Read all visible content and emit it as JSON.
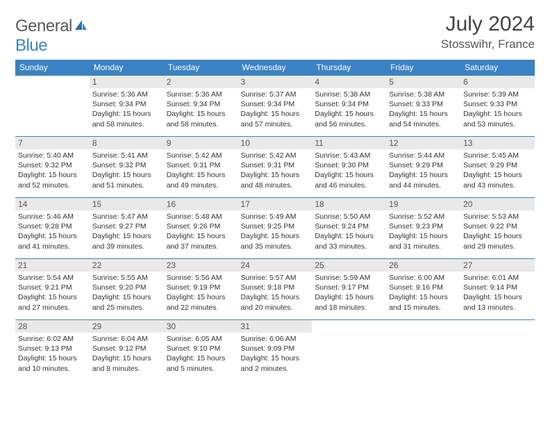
{
  "logo": {
    "general": "General",
    "blue": "Blue"
  },
  "title": "July 2024",
  "location": "Stosswihr, France",
  "colors": {
    "header_bg": "#3b82c4",
    "header_text": "#ffffff",
    "daynum_bg": "#e9e9e9",
    "border": "#3b82c4",
    "logo_grey": "#5a5a5a",
    "logo_blue": "#3b82c4"
  },
  "weekdays": [
    "Sunday",
    "Monday",
    "Tuesday",
    "Wednesday",
    "Thursday",
    "Friday",
    "Saturday"
  ],
  "weeks": [
    [
      null,
      {
        "day": "1",
        "sunrise": "Sunrise: 5:36 AM",
        "sunset": "Sunset: 9:34 PM",
        "dl1": "Daylight: 15 hours",
        "dl2": "and 58 minutes."
      },
      {
        "day": "2",
        "sunrise": "Sunrise: 5:36 AM",
        "sunset": "Sunset: 9:34 PM",
        "dl1": "Daylight: 15 hours",
        "dl2": "and 58 minutes."
      },
      {
        "day": "3",
        "sunrise": "Sunrise: 5:37 AM",
        "sunset": "Sunset: 9:34 PM",
        "dl1": "Daylight: 15 hours",
        "dl2": "and 57 minutes."
      },
      {
        "day": "4",
        "sunrise": "Sunrise: 5:38 AM",
        "sunset": "Sunset: 9:34 PM",
        "dl1": "Daylight: 15 hours",
        "dl2": "and 56 minutes."
      },
      {
        "day": "5",
        "sunrise": "Sunrise: 5:38 AM",
        "sunset": "Sunset: 9:33 PM",
        "dl1": "Daylight: 15 hours",
        "dl2": "and 54 minutes."
      },
      {
        "day": "6",
        "sunrise": "Sunrise: 5:39 AM",
        "sunset": "Sunset: 9:33 PM",
        "dl1": "Daylight: 15 hours",
        "dl2": "and 53 minutes."
      }
    ],
    [
      {
        "day": "7",
        "sunrise": "Sunrise: 5:40 AM",
        "sunset": "Sunset: 9:32 PM",
        "dl1": "Daylight: 15 hours",
        "dl2": "and 52 minutes."
      },
      {
        "day": "8",
        "sunrise": "Sunrise: 5:41 AM",
        "sunset": "Sunset: 9:32 PM",
        "dl1": "Daylight: 15 hours",
        "dl2": "and 51 minutes."
      },
      {
        "day": "9",
        "sunrise": "Sunrise: 5:42 AM",
        "sunset": "Sunset: 9:31 PM",
        "dl1": "Daylight: 15 hours",
        "dl2": "and 49 minutes."
      },
      {
        "day": "10",
        "sunrise": "Sunrise: 5:42 AM",
        "sunset": "Sunset: 9:31 PM",
        "dl1": "Daylight: 15 hours",
        "dl2": "and 48 minutes."
      },
      {
        "day": "11",
        "sunrise": "Sunrise: 5:43 AM",
        "sunset": "Sunset: 9:30 PM",
        "dl1": "Daylight: 15 hours",
        "dl2": "and 46 minutes."
      },
      {
        "day": "12",
        "sunrise": "Sunrise: 5:44 AM",
        "sunset": "Sunset: 9:29 PM",
        "dl1": "Daylight: 15 hours",
        "dl2": "and 44 minutes."
      },
      {
        "day": "13",
        "sunrise": "Sunrise: 5:45 AM",
        "sunset": "Sunset: 9:29 PM",
        "dl1": "Daylight: 15 hours",
        "dl2": "and 43 minutes."
      }
    ],
    [
      {
        "day": "14",
        "sunrise": "Sunrise: 5:46 AM",
        "sunset": "Sunset: 9:28 PM",
        "dl1": "Daylight: 15 hours",
        "dl2": "and 41 minutes."
      },
      {
        "day": "15",
        "sunrise": "Sunrise: 5:47 AM",
        "sunset": "Sunset: 9:27 PM",
        "dl1": "Daylight: 15 hours",
        "dl2": "and 39 minutes."
      },
      {
        "day": "16",
        "sunrise": "Sunrise: 5:48 AM",
        "sunset": "Sunset: 9:26 PM",
        "dl1": "Daylight: 15 hours",
        "dl2": "and 37 minutes."
      },
      {
        "day": "17",
        "sunrise": "Sunrise: 5:49 AM",
        "sunset": "Sunset: 9:25 PM",
        "dl1": "Daylight: 15 hours",
        "dl2": "and 35 minutes."
      },
      {
        "day": "18",
        "sunrise": "Sunrise: 5:50 AM",
        "sunset": "Sunset: 9:24 PM",
        "dl1": "Daylight: 15 hours",
        "dl2": "and 33 minutes."
      },
      {
        "day": "19",
        "sunrise": "Sunrise: 5:52 AM",
        "sunset": "Sunset: 9:23 PM",
        "dl1": "Daylight: 15 hours",
        "dl2": "and 31 minutes."
      },
      {
        "day": "20",
        "sunrise": "Sunrise: 5:53 AM",
        "sunset": "Sunset: 9:22 PM",
        "dl1": "Daylight: 15 hours",
        "dl2": "and 29 minutes."
      }
    ],
    [
      {
        "day": "21",
        "sunrise": "Sunrise: 5:54 AM",
        "sunset": "Sunset: 9:21 PM",
        "dl1": "Daylight: 15 hours",
        "dl2": "and 27 minutes."
      },
      {
        "day": "22",
        "sunrise": "Sunrise: 5:55 AM",
        "sunset": "Sunset: 9:20 PM",
        "dl1": "Daylight: 15 hours",
        "dl2": "and 25 minutes."
      },
      {
        "day": "23",
        "sunrise": "Sunrise: 5:56 AM",
        "sunset": "Sunset: 9:19 PM",
        "dl1": "Daylight: 15 hours",
        "dl2": "and 22 minutes."
      },
      {
        "day": "24",
        "sunrise": "Sunrise: 5:57 AM",
        "sunset": "Sunset: 9:18 PM",
        "dl1": "Daylight: 15 hours",
        "dl2": "and 20 minutes."
      },
      {
        "day": "25",
        "sunrise": "Sunrise: 5:59 AM",
        "sunset": "Sunset: 9:17 PM",
        "dl1": "Daylight: 15 hours",
        "dl2": "and 18 minutes."
      },
      {
        "day": "26",
        "sunrise": "Sunrise: 6:00 AM",
        "sunset": "Sunset: 9:16 PM",
        "dl1": "Daylight: 15 hours",
        "dl2": "and 15 minutes."
      },
      {
        "day": "27",
        "sunrise": "Sunrise: 6:01 AM",
        "sunset": "Sunset: 9:14 PM",
        "dl1": "Daylight: 15 hours",
        "dl2": "and 13 minutes."
      }
    ],
    [
      {
        "day": "28",
        "sunrise": "Sunrise: 6:02 AM",
        "sunset": "Sunset: 9:13 PM",
        "dl1": "Daylight: 15 hours",
        "dl2": "and 10 minutes."
      },
      {
        "day": "29",
        "sunrise": "Sunrise: 6:04 AM",
        "sunset": "Sunset: 9:12 PM",
        "dl1": "Daylight: 15 hours",
        "dl2": "and 8 minutes."
      },
      {
        "day": "30",
        "sunrise": "Sunrise: 6:05 AM",
        "sunset": "Sunset: 9:10 PM",
        "dl1": "Daylight: 15 hours",
        "dl2": "and 5 minutes."
      },
      {
        "day": "31",
        "sunrise": "Sunrise: 6:06 AM",
        "sunset": "Sunset: 9:09 PM",
        "dl1": "Daylight: 15 hours",
        "dl2": "and 2 minutes."
      },
      null,
      null,
      null
    ]
  ]
}
